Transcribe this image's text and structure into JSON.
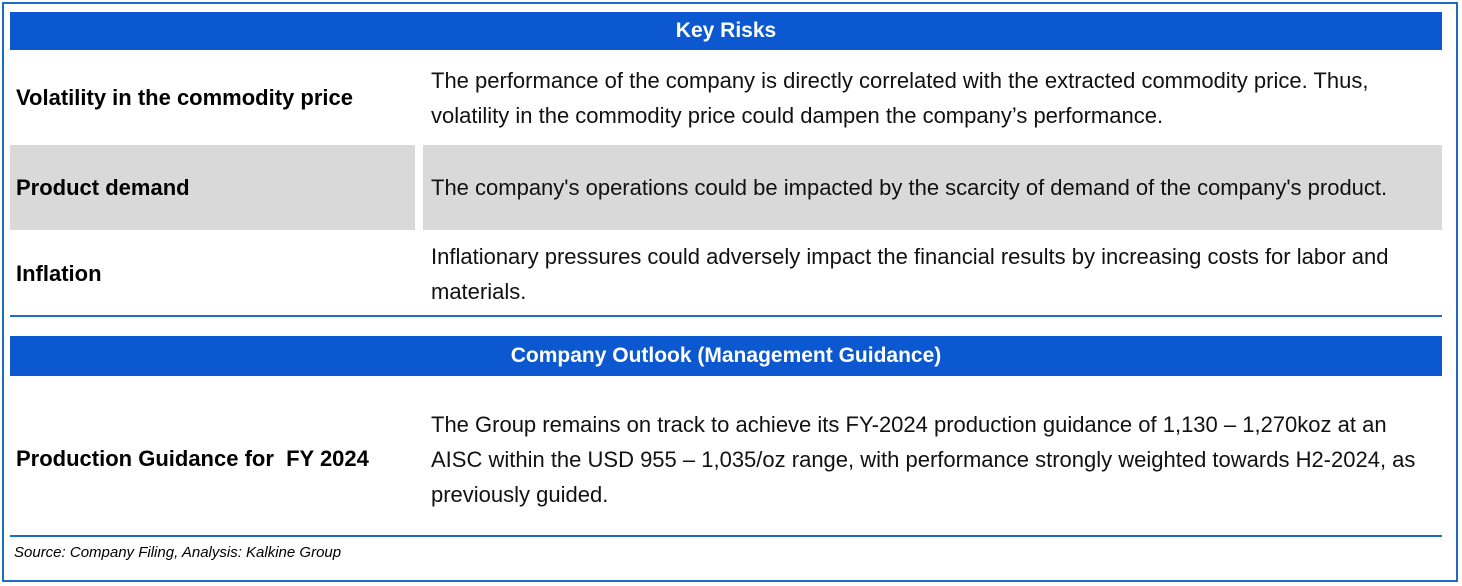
{
  "key_risks": {
    "title": "Key Risks",
    "rows": [
      {
        "label": "Volatility in the commodity price",
        "text": "The performance of the company is directly correlated with the extracted commodity price. Thus, volatility in the commodity price could dampen the company’s performance."
      },
      {
        "label": "Product demand",
        "text": "The company's operations could be impacted by the scarcity of demand of the company's product."
      },
      {
        "label": "Inflation",
        "text": "Inflationary pressures could adversely impact the financial results by increasing costs for labor and materials."
      }
    ]
  },
  "outlook": {
    "title": "Company Outlook (Management Guidance)",
    "rows": [
      {
        "label": "Production Guidance for  FY 2024",
        "text": "The Group remains on track to achieve its FY-2024 production guidance of 1,130 – 1,270koz at an AISC within the USD 955 – 1,035/oz range, with performance strongly weighted towards H2-2024, as previously guided."
      }
    ]
  },
  "source": "Source: Company Filing, Analysis: Kalkine Group",
  "colors": {
    "header_band": "#0c58d0",
    "border": "#1d6ec1",
    "shaded_row": "#d9d9d9"
  }
}
